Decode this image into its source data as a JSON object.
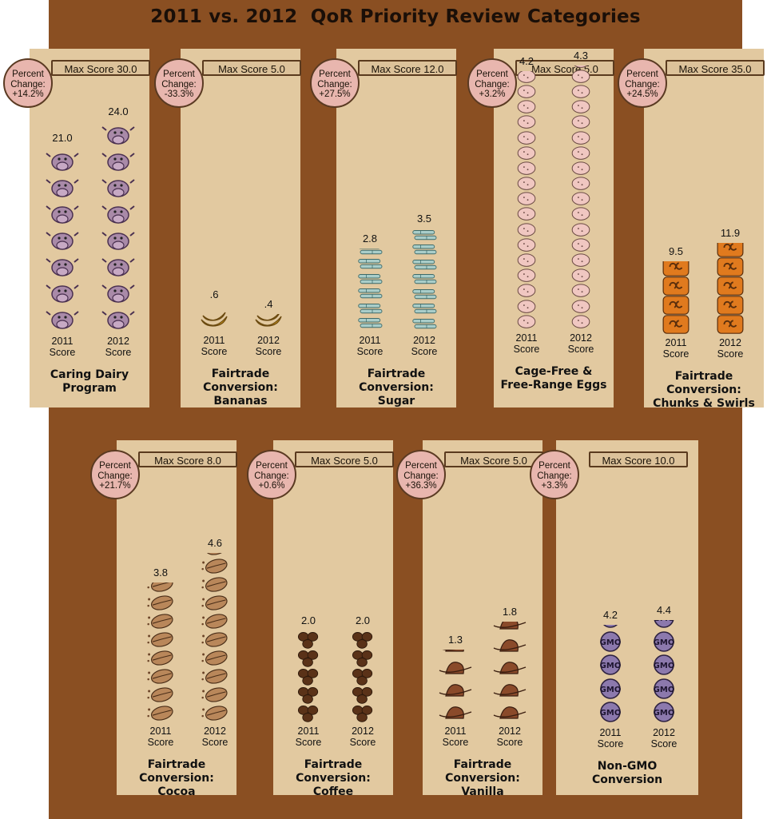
{
  "title": "2011 vs. 2012  QoR Priority Review Categories",
  "badge_label": [
    "Percent",
    "Change:"
  ],
  "score_word": "Score",
  "years": [
    "2011",
    "2012"
  ],
  "colors": {
    "background": "#8a4f22",
    "card": "#e2c9a0",
    "badge": "#e8b6ae"
  },
  "chart_data": {
    "type": "bar",
    "title": "2011 vs. 2012  QoR Priority Review Categories",
    "series_labels": [
      "2011 Score",
      "2012 Score"
    ],
    "panels": [
      {
        "name": "Caring Dairy Program",
        "caption": [
          "Caring Dairy",
          "Program"
        ],
        "max_label": "Max Score 30.0",
        "max": 30.0,
        "change": "+14.2%",
        "v2011": 21.0,
        "v2012": 24.0,
        "l2011": "21.0",
        "l2012": "24.0",
        "icon": "cow-icon"
      },
      {
        "name": "Fairtrade Conversion: Bananas",
        "caption": [
          "Fairtrade",
          "Conversion:",
          "Bananas"
        ],
        "max_label": "Max Score 5.0",
        "max": 5.0,
        "change": "-33.3%",
        "v2011": 0.6,
        "v2012": 0.4,
        "l2011": ".6",
        "l2012": ".4",
        "icon": "banana-icon"
      },
      {
        "name": "Fairtrade Conversion: Sugar",
        "caption": [
          "Fairtrade",
          "Conversion:",
          "Sugar"
        ],
        "max_label": "Max Score 12.0",
        "max": 12.0,
        "change": "+27.5%",
        "v2011": 2.8,
        "v2012": 3.5,
        "l2011": "2.8",
        "l2012": "3.5",
        "icon": "sugarcane-icon"
      },
      {
        "name": "Cage-Free & Free-Range Eggs",
        "caption": [
          "Cage-Free &",
          "Free-Range Eggs"
        ],
        "max_label": "Max Score 5.0",
        "max": 5.0,
        "change": "+3.2%",
        "v2011": 4.2,
        "v2012": 4.3,
        "l2011": "4.2",
        "l2012": "4.3",
        "icon": "egg-icon"
      },
      {
        "name": "Fairtrade Conversion: Chunks & Swirls",
        "caption": [
          "Fairtrade",
          "Conversion:",
          "Chunks & Swirls"
        ],
        "max_label": "Max Score 35.0",
        "max": 35.0,
        "change": "+24.5%",
        "v2011": 9.5,
        "v2012": 11.9,
        "l2011": "9.5",
        "l2012": "11.9",
        "icon": "swirl-icon"
      },
      {
        "name": "Fairtrade Conversion: Cocoa",
        "caption": [
          "Fairtrade",
          "Conversion:",
          "Cocoa"
        ],
        "max_label": "Max Score 8.0",
        "max": 8.0,
        "change": "+21.7%",
        "v2011": 3.8,
        "v2012": 4.6,
        "l2011": "3.8",
        "l2012": "4.6",
        "icon": "cocoa-bean-icon"
      },
      {
        "name": "Fairtrade Conversion: Coffee",
        "caption": [
          "Fairtrade",
          "Conversion:",
          "Coffee"
        ],
        "max_label": "Max Score 5.0",
        "max": 5.0,
        "change": "+0.6%",
        "v2011": 2.0,
        "v2012": 2.0,
        "l2011": "2.0",
        "l2012": "2.0",
        "icon": "coffee-bean-icon"
      },
      {
        "name": "Fairtrade Conversion: Vanilla",
        "caption": [
          "Fairtrade",
          "Conversion:",
          "Vanilla"
        ],
        "max_label": "Max Score 5.0",
        "max": 5.0,
        "change": "+36.3%",
        "v2011": 1.3,
        "v2012": 1.8,
        "l2011": "1.3",
        "l2012": "1.8",
        "icon": "vanilla-icon"
      },
      {
        "name": "Non-GMO Conversion",
        "caption": [
          "Non-GMO",
          "Conversion"
        ],
        "max_label": "Max Score 10.0",
        "max": 10.0,
        "change": "+3.3%",
        "v2011": 4.2,
        "v2012": 4.4,
        "l2011": "4.2",
        "l2012": "4.4",
        "icon": "gmo-icon"
      }
    ]
  }
}
